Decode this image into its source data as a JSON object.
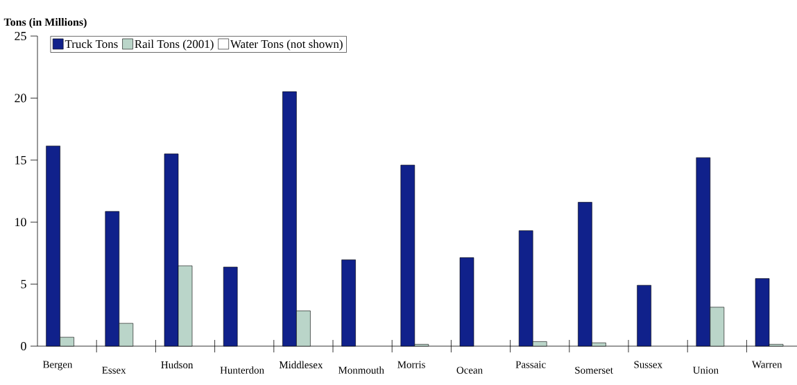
{
  "chart_data": {
    "type": "bar",
    "ylabel": "Tons (in Millions)",
    "categories": [
      "Bergen",
      "Essex",
      "Hudson",
      "Hunterdon",
      "Middlesex",
      "Monmouth",
      "Morris",
      "Ocean",
      "Passaic",
      "Somerset",
      "Sussex",
      "Union",
      "Warren"
    ],
    "series": [
      {
        "name": "Truck Tons",
        "color": "#10218b",
        "values": [
          16.14,
          10.86,
          15.5,
          6.38,
          20.52,
          6.96,
          14.6,
          7.14,
          9.31,
          11.6,
          4.91,
          15.2,
          5.45
        ]
      },
      {
        "name": "Rail Tons (2001)",
        "color": "#bad5c9",
        "values": [
          0.72,
          1.84,
          6.48,
          null,
          2.85,
          null,
          0.15,
          null,
          0.37,
          0.27,
          null,
          3.14,
          0.15
        ]
      },
      {
        "name": "Water Tons (not shown)",
        "color": "#ffffff",
        "values": [
          null,
          null,
          null,
          null,
          null,
          null,
          null,
          null,
          null,
          null,
          null,
          null,
          null
        ]
      }
    ],
    "ylim": [
      0,
      25
    ],
    "yticks": [
      0,
      5,
      10,
      15,
      20,
      25
    ],
    "legend": "top left"
  }
}
